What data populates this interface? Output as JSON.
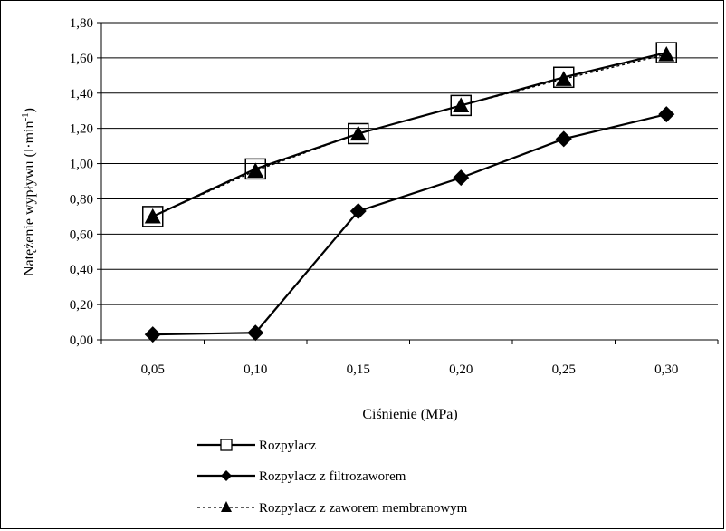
{
  "chart_data": {
    "type": "line",
    "title": "",
    "xlabel": "Ciśnienie (MPa)",
    "ylabel": "Natężenie wypływu (l·min-1)",
    "ylabel_main": "Natężenie wypływu (l·min",
    "ylabel_sup": "-1",
    "ylabel_close": ")",
    "categories": [
      "0,05",
      "0,10",
      "0,15",
      "0,20",
      "0,25",
      "0,30"
    ],
    "ylim": [
      0,
      1.8
    ],
    "yticks": [
      "0,00",
      "0,20",
      "0,40",
      "0,60",
      "0,80",
      "1,00",
      "1,20",
      "1,40",
      "1,60",
      "1,80"
    ],
    "grid": "horizontal",
    "legend_position": "bottom",
    "series": [
      {
        "name": "Rozpylacz",
        "marker": "square-open",
        "line": "solid",
        "values": [
          0.7,
          0.97,
          1.17,
          1.33,
          1.49,
          1.63
        ]
      },
      {
        "name": "Rozpylacz z filtrozaworem",
        "marker": "diamond",
        "line": "solid",
        "values": [
          0.03,
          0.04,
          0.73,
          0.92,
          1.14,
          1.28
        ]
      },
      {
        "name": "Rozpylacz z zaworem membranowym",
        "marker": "triangle",
        "line": "dotted",
        "values": [
          0.7,
          0.96,
          1.17,
          1.33,
          1.48,
          1.62
        ]
      }
    ]
  }
}
